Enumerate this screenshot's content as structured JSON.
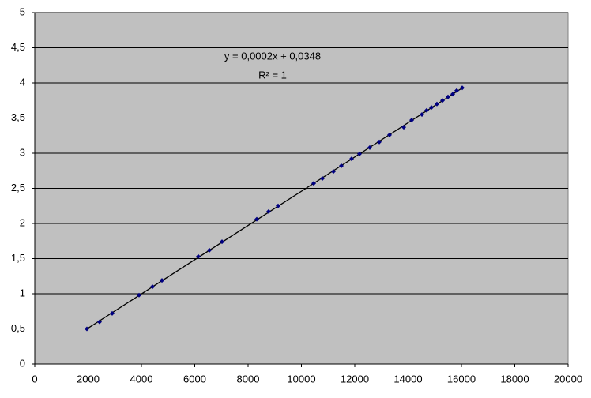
{
  "chart_data": {
    "type": "scatter",
    "annotations": [
      "y = 0,0002x + 0,0348",
      "R² = 1"
    ],
    "trendline": true,
    "grid": true,
    "series": [
      {
        "color": "#000080",
        "x": [
          1956,
          2430,
          2904,
          3911,
          4415,
          4770,
          6133,
          6548,
          7022,
          8326,
          8770,
          9126,
          10459,
          10785,
          11200,
          11496,
          11881,
          12178,
          12563,
          12919,
          13304,
          13837,
          14133,
          14519,
          14696,
          14874,
          15081,
          15289,
          15496,
          15674,
          15822,
          16030
        ],
        "values": [
          0.5,
          0.6,
          0.72,
          0.98,
          1.1,
          1.19,
          1.53,
          1.62,
          1.74,
          2.06,
          2.17,
          2.25,
          2.57,
          2.64,
          2.74,
          2.82,
          2.92,
          2.99,
          3.08,
          3.16,
          3.26,
          3.37,
          3.47,
          3.55,
          3.61,
          3.65,
          3.7,
          3.75,
          3.8,
          3.84,
          3.89,
          3.93
        ]
      }
    ],
    "xlim": [
      0,
      20000
    ],
    "xticks": [
      0,
      2000,
      4000,
      6000,
      8000,
      10000,
      12000,
      14000,
      16000,
      18000,
      20000
    ],
    "ylim": [
      0,
      5
    ],
    "yticks": [
      0,
      {
        "value": 0.5,
        "label": "0,5"
      },
      1,
      {
        "value": 1.5,
        "label": "1,5"
      },
      2,
      {
        "value": 2.5,
        "label": "2,5"
      },
      3,
      {
        "value": 3.5,
        "label": "3,5"
      },
      4,
      {
        "value": 4.5,
        "label": "4,5"
      },
      5
    ]
  }
}
